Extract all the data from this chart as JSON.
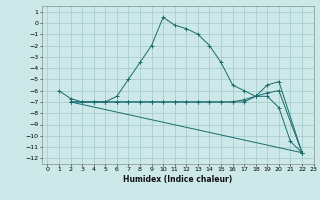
{
  "xlabel": "Humidex (Indice chaleur)",
  "bg_color": "#cce8e8",
  "grid_color": "#9bbfbf",
  "line_color": "#1a6b6b",
  "xlim": [
    -0.5,
    23
  ],
  "ylim": [
    -12.5,
    1.5
  ],
  "xticks": [
    0,
    1,
    2,
    3,
    4,
    5,
    6,
    7,
    8,
    9,
    10,
    11,
    12,
    13,
    14,
    15,
    16,
    17,
    18,
    19,
    20,
    21,
    22,
    23
  ],
  "yticks": [
    1,
    0,
    -1,
    -2,
    -3,
    -4,
    -5,
    -6,
    -7,
    -8,
    -9,
    -10,
    -11,
    -12
  ],
  "line1_x": [
    1,
    2,
    3,
    4,
    5,
    6,
    7,
    8,
    9,
    10,
    11,
    12,
    13,
    14,
    15,
    16,
    17,
    18,
    19,
    20,
    21,
    22
  ],
  "line1_y": [
    -6,
    -6.7,
    -7,
    -7,
    -7,
    -6.5,
    -5,
    -3.5,
    -2,
    0.5,
    -0.2,
    -0.5,
    -1,
    -2,
    -3.5,
    -5.5,
    -6,
    -6.5,
    -6.5,
    -7.5,
    -10.5,
    -11.5
  ],
  "line2_x": [
    2,
    3,
    4,
    5,
    6,
    7,
    8,
    9,
    10,
    11,
    12,
    13,
    14,
    15,
    16,
    17,
    18,
    19,
    20,
    22
  ],
  "line2_y": [
    -7,
    -7,
    -7,
    -7,
    -7,
    -7,
    -7,
    -7,
    -7,
    -7,
    -7,
    -7,
    -7,
    -7,
    -7,
    -7,
    -6.5,
    -5.5,
    -5.2,
    -11.5
  ],
  "line3_x": [
    2,
    3,
    4,
    5,
    6,
    7,
    8,
    9,
    10,
    11,
    12,
    13,
    14,
    15,
    16,
    17,
    18,
    19,
    20,
    22
  ],
  "line3_y": [
    -7,
    -7,
    -7,
    -7,
    -7,
    -7,
    -7,
    -7,
    -7,
    -7,
    -7,
    -7,
    -7,
    -7,
    -7,
    -6.8,
    -6.5,
    -6.2,
    -6.0,
    -11.5
  ],
  "line4_x": [
    2,
    22
  ],
  "line4_y": [
    -7,
    -11.5
  ]
}
